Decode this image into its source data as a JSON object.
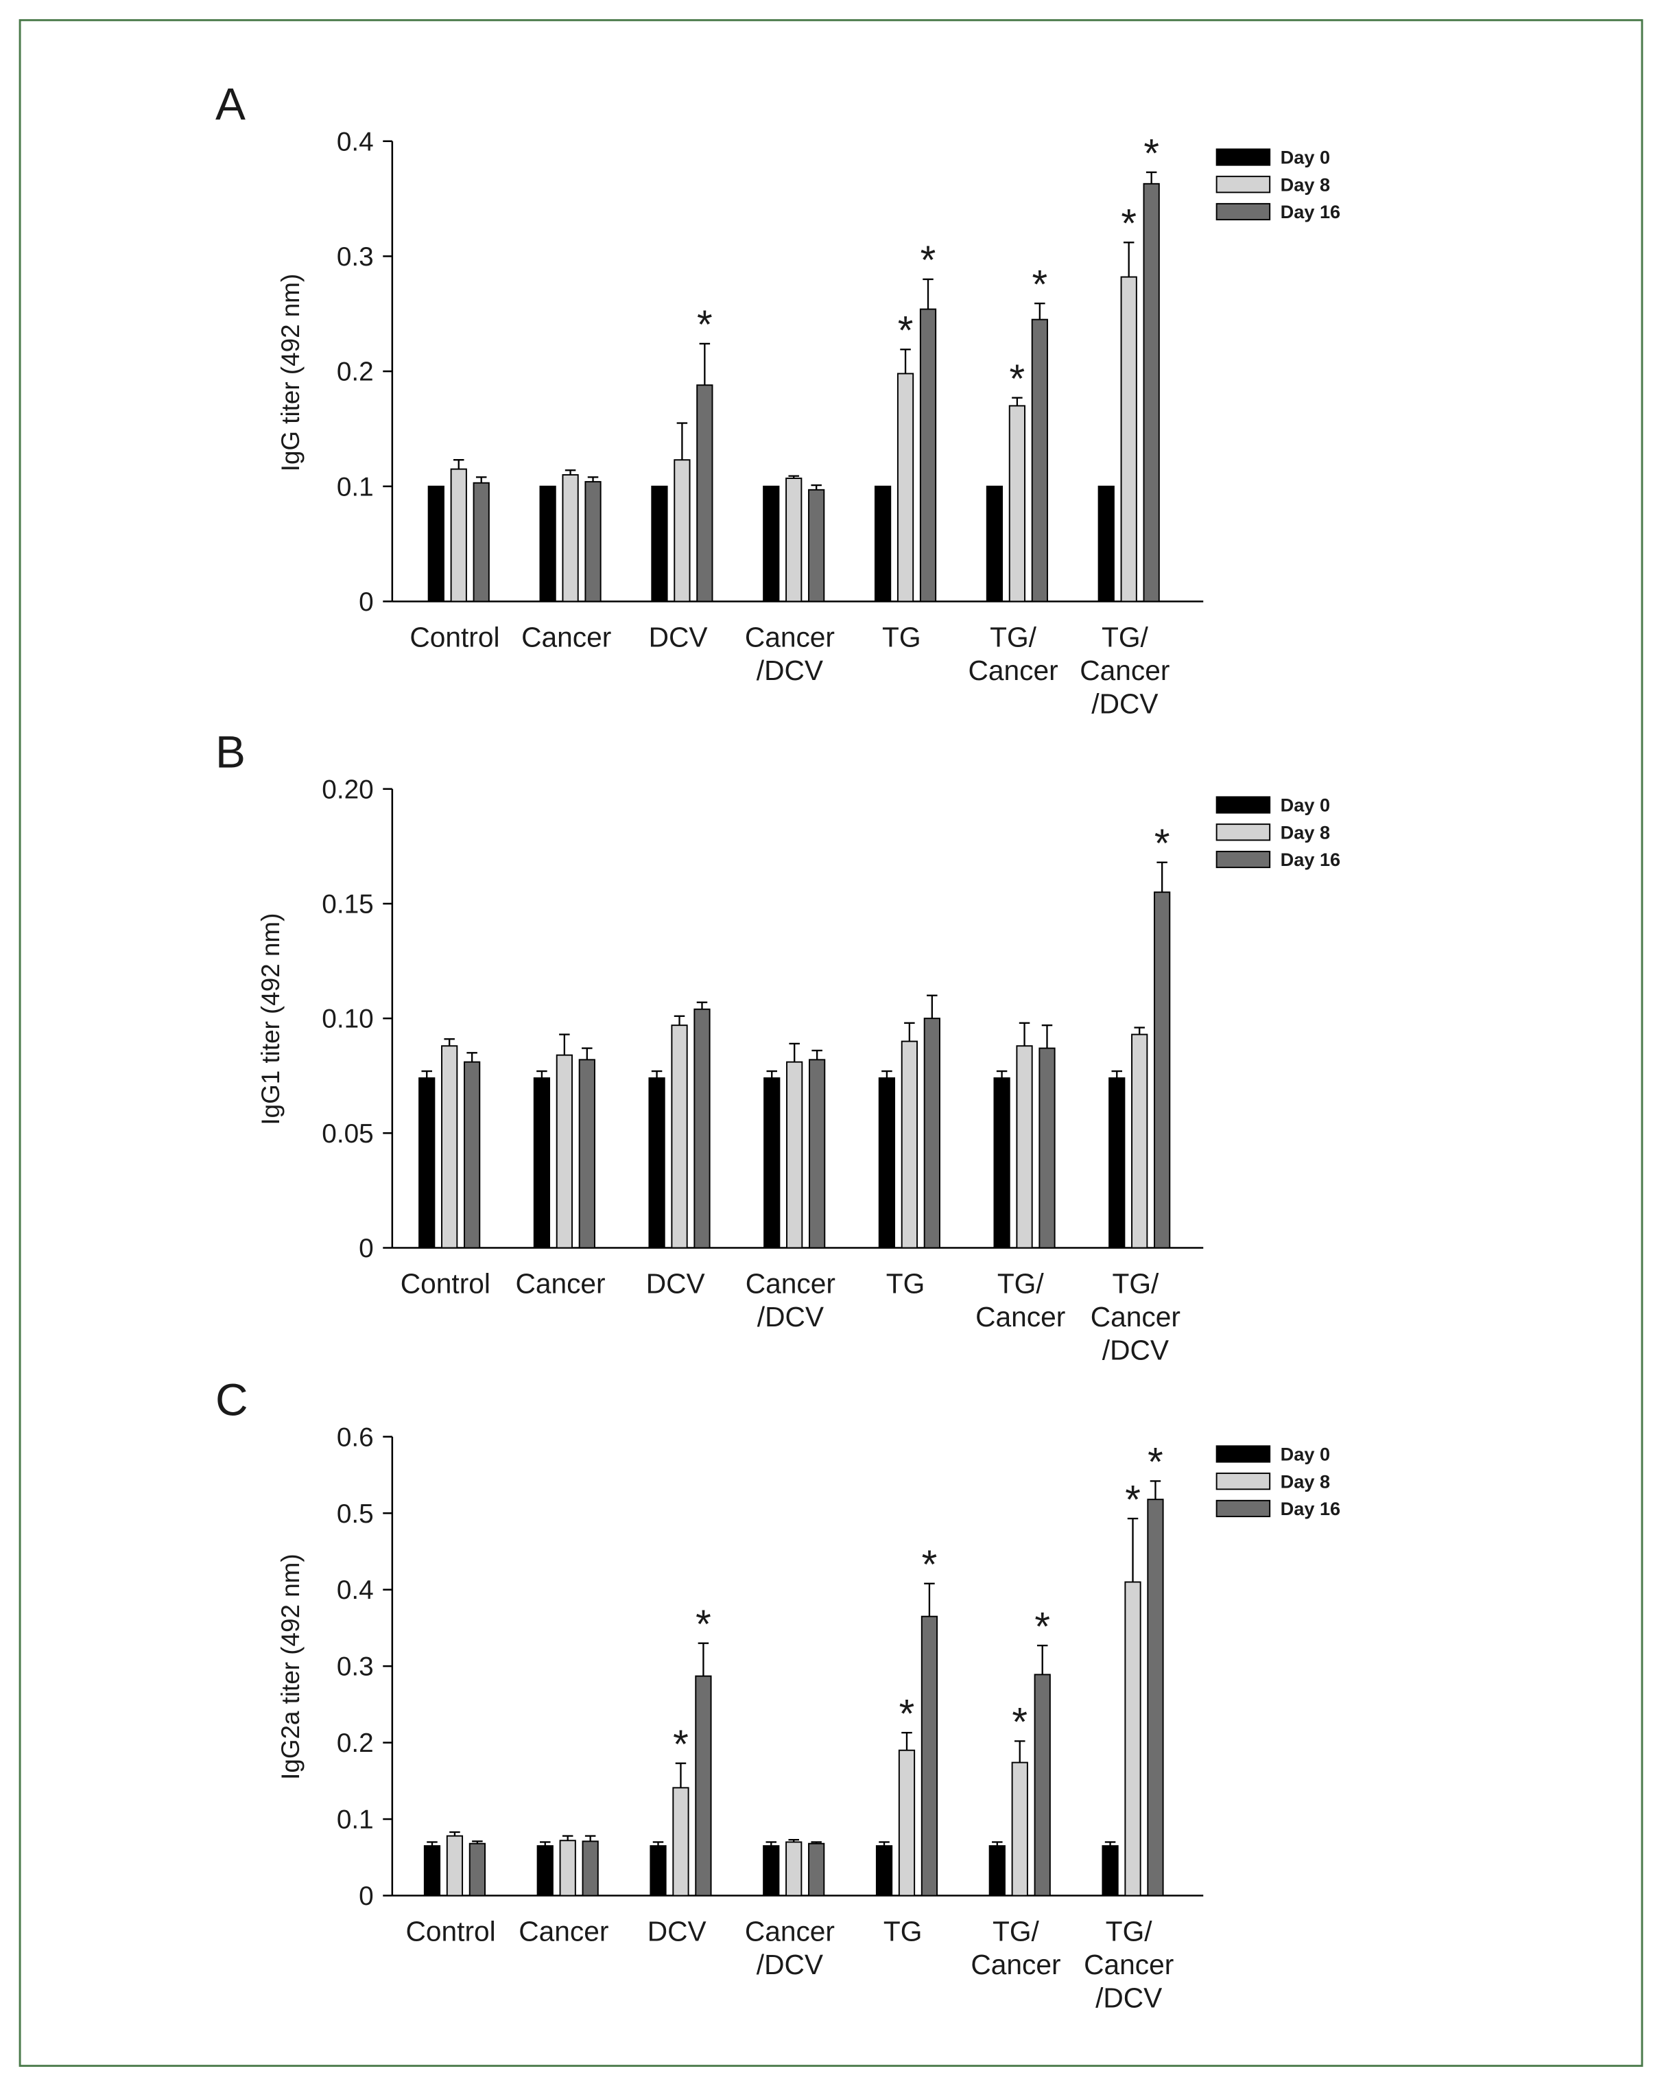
{
  "colors": {
    "day0": "#000000",
    "day8": "#d3d3d3",
    "day16": "#6e6e6e",
    "frame": "#4a7a4a"
  },
  "chart_data": [
    {
      "type": "bar",
      "panel": "A",
      "ylabel": "IgG titer (492 nm)",
      "ylim": [
        0,
        0.4
      ],
      "yticks": [
        "0",
        "0.1",
        "0.2",
        "0.3",
        "0.4"
      ],
      "ytick_values": [
        0,
        0.1,
        0.2,
        0.3,
        0.4
      ],
      "legend": "top-right",
      "categories": [
        [
          "Control"
        ],
        [
          "Cancer"
        ],
        [
          "DCV"
        ],
        [
          "Cancer",
          "/DCV"
        ],
        [
          "TG"
        ],
        [
          "TG/",
          "Cancer"
        ],
        [
          "TG/",
          "Cancer",
          "/DCV"
        ]
      ],
      "series": [
        {
          "name": "Day 0",
          "values": [
            0.1,
            0.1,
            0.1,
            0.1,
            0.1,
            0.1,
            0.1
          ],
          "errors": [
            0,
            0,
            0,
            0,
            0,
            0,
            0
          ],
          "significant": [
            false,
            false,
            false,
            false,
            false,
            false,
            false
          ]
        },
        {
          "name": "Day 8",
          "values": [
            0.115,
            0.11,
            0.123,
            0.107,
            0.198,
            0.17,
            0.282
          ],
          "errors": [
            0.008,
            0.004,
            0.032,
            0.002,
            0.021,
            0.007,
            0.03
          ],
          "significant": [
            false,
            false,
            false,
            false,
            true,
            true,
            true
          ]
        },
        {
          "name": "Day 16",
          "values": [
            0.103,
            0.104,
            0.188,
            0.097,
            0.254,
            0.245,
            0.363
          ],
          "errors": [
            0.005,
            0.004,
            0.036,
            0.004,
            0.026,
            0.014,
            0.01
          ],
          "significant": [
            false,
            false,
            true,
            false,
            true,
            true,
            true
          ]
        }
      ]
    },
    {
      "type": "bar",
      "panel": "B",
      "ylabel": "IgG1 titer (492 nm)",
      "ylim": [
        0,
        0.2
      ],
      "yticks": [
        "0",
        "0.05",
        "0.10",
        "0.15",
        "0.20"
      ],
      "ytick_values": [
        0,
        0.05,
        0.1,
        0.15,
        0.2
      ],
      "legend": "top-right",
      "categories": [
        [
          "Control"
        ],
        [
          "Cancer"
        ],
        [
          "DCV"
        ],
        [
          "Cancer",
          "/DCV"
        ],
        [
          "TG"
        ],
        [
          "TG/",
          "Cancer"
        ],
        [
          "TG/",
          "Cancer",
          "/DCV"
        ]
      ],
      "series": [
        {
          "name": "Day 0",
          "values": [
            0.074,
            0.074,
            0.074,
            0.074,
            0.074,
            0.074,
            0.074
          ],
          "errors": [
            0.003,
            0.003,
            0.003,
            0.003,
            0.003,
            0.003,
            0.003
          ],
          "significant": [
            false,
            false,
            false,
            false,
            false,
            false,
            false
          ]
        },
        {
          "name": "Day 8",
          "values": [
            0.088,
            0.084,
            0.097,
            0.081,
            0.09,
            0.088,
            0.093
          ],
          "errors": [
            0.003,
            0.009,
            0.004,
            0.008,
            0.008,
            0.01,
            0.003
          ],
          "significant": [
            false,
            false,
            false,
            false,
            false,
            false,
            false
          ]
        },
        {
          "name": "Day 16",
          "values": [
            0.081,
            0.082,
            0.104,
            0.082,
            0.1,
            0.087,
            0.155
          ],
          "errors": [
            0.004,
            0.005,
            0.003,
            0.004,
            0.01,
            0.01,
            0.013
          ],
          "significant": [
            false,
            false,
            false,
            false,
            false,
            false,
            true
          ]
        }
      ]
    },
    {
      "type": "bar",
      "panel": "C",
      "ylabel": "IgG2a titer (492 nm)",
      "ylim": [
        0,
        0.6
      ],
      "yticks": [
        "0",
        "0.1",
        "0.2",
        "0.3",
        "0.4",
        "0.5",
        "0.6"
      ],
      "ytick_values": [
        0,
        0.1,
        0.2,
        0.3,
        0.4,
        0.5,
        0.6
      ],
      "legend": "top-right",
      "categories": [
        [
          "Control"
        ],
        [
          "Cancer"
        ],
        [
          "DCV"
        ],
        [
          "Cancer",
          "/DCV"
        ],
        [
          "TG"
        ],
        [
          "TG/",
          "Cancer"
        ],
        [
          "TG/",
          "Cancer",
          "/DCV"
        ]
      ],
      "series": [
        {
          "name": "Day 0",
          "values": [
            0.065,
            0.065,
            0.065,
            0.065,
            0.065,
            0.065,
            0.065
          ],
          "errors": [
            0.005,
            0.005,
            0.005,
            0.005,
            0.005,
            0.005,
            0.005
          ],
          "significant": [
            false,
            false,
            false,
            false,
            false,
            false,
            false
          ]
        },
        {
          "name": "Day 8",
          "values": [
            0.078,
            0.072,
            0.141,
            0.07,
            0.19,
            0.174,
            0.41
          ],
          "errors": [
            0.005,
            0.006,
            0.032,
            0.003,
            0.023,
            0.028,
            0.083
          ],
          "significant": [
            false,
            false,
            true,
            false,
            true,
            true,
            true
          ]
        },
        {
          "name": "Day 16",
          "values": [
            0.068,
            0.071,
            0.287,
            0.068,
            0.365,
            0.289,
            0.518
          ],
          "errors": [
            0.003,
            0.007,
            0.043,
            0.002,
            0.043,
            0.038,
            0.024
          ],
          "significant": [
            false,
            false,
            true,
            false,
            true,
            true,
            true
          ]
        }
      ]
    }
  ],
  "significance_marker": "*"
}
